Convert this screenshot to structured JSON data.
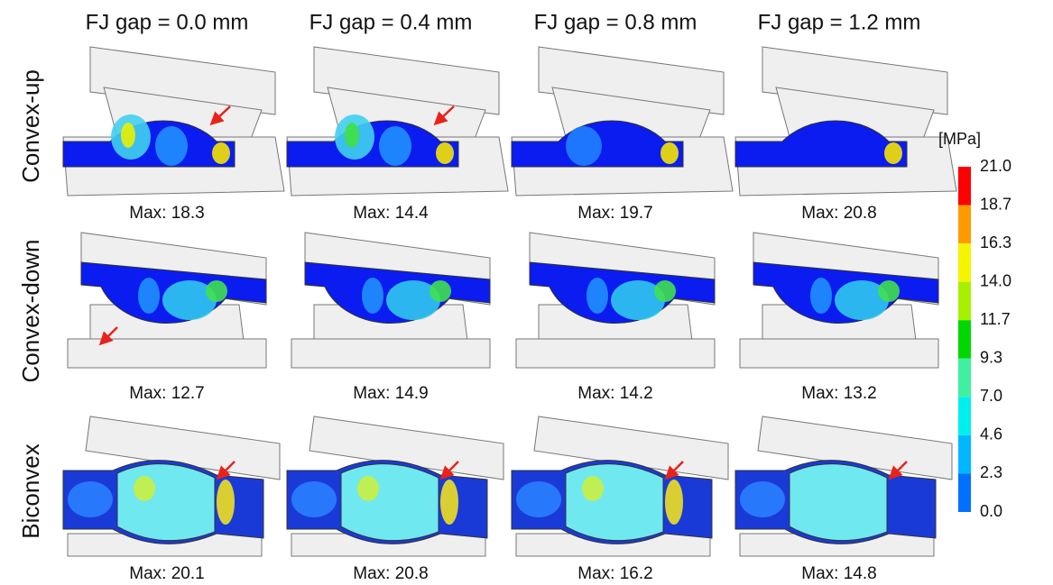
{
  "columns": [
    "FJ gap = 0.0 mm",
    "FJ gap = 0.4 mm",
    "FJ gap = 0.8 mm",
    "FJ gap = 1.2 mm"
  ],
  "rows": [
    {
      "label": "Convex-up",
      "max": [
        "Max: 18.3",
        "Max: 14.4",
        "Max: 19.7",
        "Max: 20.8"
      ]
    },
    {
      "label": "Convex-down",
      "max": [
        "Max: 12.7",
        "Max: 14.9",
        "Max: 14.2",
        "Max: 13.2"
      ]
    },
    {
      "label": "Biconvex",
      "max": [
        "Max: 20.1",
        "Max: 20.8",
        "Max: 16.2",
        "Max: 14.8"
      ]
    }
  ],
  "colorbar": {
    "unit": "[MPa]",
    "labels": [
      "21.0",
      "18.7",
      "16.3",
      "14.0",
      "11.7",
      "9.3",
      "7.0",
      "4.6",
      "2.3",
      "0.0"
    ]
  }
}
